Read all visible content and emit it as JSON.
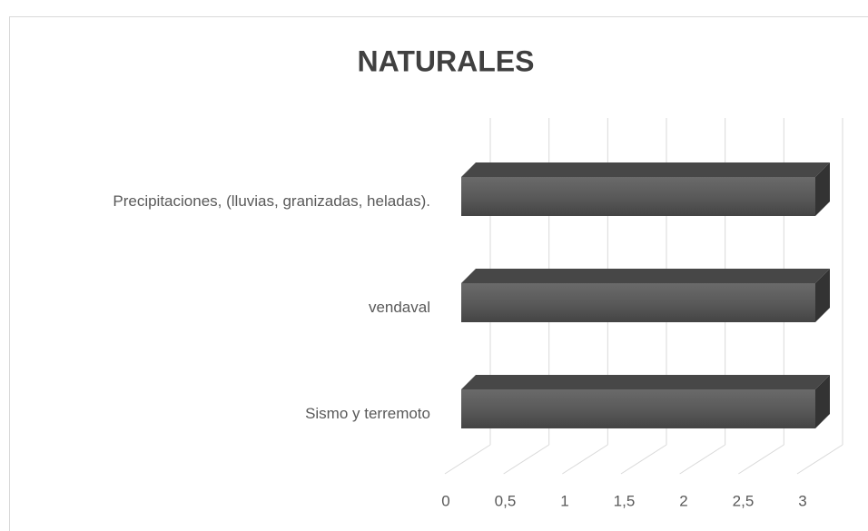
{
  "chart_data": {
    "type": "bar3d",
    "orientation": "horizontal",
    "title": "NATURALES",
    "categories": [
      "Precipitaciones, (lluvias, granizadas, heladas).",
      "vendaval",
      "Sismo y terremoto"
    ],
    "values": [
      3,
      3,
      3
    ],
    "color": "#595959",
    "xlim": [
      0,
      3
    ],
    "xticks": [
      0,
      {
        "value": 0.5,
        "label": "0,5"
      },
      1,
      {
        "value": 1.5,
        "label": "1,5"
      },
      2,
      {
        "value": 2.5,
        "label": "2,5"
      },
      3
    ],
    "grid": true
  }
}
